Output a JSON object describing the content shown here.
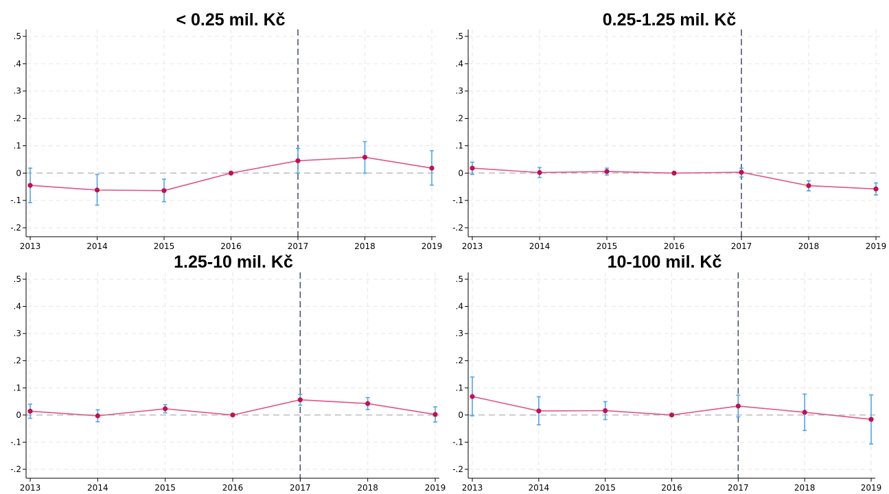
{
  "colors": {
    "series": "#e0557f",
    "point": "#c40f50",
    "ci": "#4ea5ef",
    "reference_line": "#4b5273",
    "zero_line": "#bdbdbd"
  },
  "chart_data": [
    {
      "type": "line",
      "title": "< 0.25 mil. Kč",
      "x": [
        2013,
        2014,
        2015,
        2016,
        2017,
        2018,
        2019
      ],
      "y": [
        -0.045,
        -0.062,
        -0.064,
        0.0,
        0.045,
        0.058,
        0.018
      ],
      "ci_low": [
        -0.108,
        -0.117,
        -0.105,
        0.0,
        0.0,
        0.0,
        -0.044
      ],
      "ci_high": [
        0.018,
        -0.005,
        -0.022,
        0.0,
        0.09,
        0.115,
        0.082
      ],
      "xlim": [
        2013,
        2019
      ],
      "ylim": [
        -0.2,
        0.5
      ],
      "yticks": [
        -0.2,
        -0.1,
        0,
        0.1,
        0.2,
        0.3,
        0.4,
        0.5
      ],
      "ytick_labels": [
        "-.2",
        "-.1",
        "0",
        ".1",
        ".2",
        ".3",
        ".4",
        ".5"
      ],
      "xtick_labels": [
        "2013",
        "2014",
        "2015",
        "2016",
        "2017",
        "2018",
        "2019"
      ],
      "reference_x": 2017,
      "grid": true
    },
    {
      "type": "line",
      "title": "0.25-1.25 mil. Kč",
      "x": [
        2013,
        2014,
        2015,
        2016,
        2017,
        2018,
        2019
      ],
      "y": [
        0.018,
        0.002,
        0.006,
        0.0,
        0.003,
        -0.046,
        -0.058
      ],
      "ci_low": [
        -0.005,
        -0.016,
        -0.007,
        0.0,
        -0.014,
        -0.065,
        -0.08
      ],
      "ci_high": [
        0.04,
        0.02,
        0.018,
        0.0,
        0.018,
        -0.028,
        -0.036
      ],
      "xlim": [
        2013,
        2019
      ],
      "ylim": [
        -0.2,
        0.5
      ],
      "yticks": [
        -0.2,
        -0.1,
        0,
        0.1,
        0.2,
        0.3,
        0.4,
        0.5
      ],
      "ytick_labels": [
        "-.2",
        "-.1",
        "0",
        ".1",
        ".2",
        ".3",
        ".4",
        ".5"
      ],
      "xtick_labels": [
        "2013",
        "2014",
        "2015",
        "2016",
        "2017",
        "2018",
        "2019"
      ],
      "reference_x": 2017,
      "grid": true
    },
    {
      "type": "line",
      "title": "1.25-10 mil. Kč",
      "x": [
        2013,
        2014,
        2015,
        2016,
        2017,
        2018,
        2019
      ],
      "y": [
        0.014,
        -0.003,
        0.023,
        0.0,
        0.056,
        0.042,
        0.002
      ],
      "ci_low": [
        -0.012,
        -0.025,
        0.008,
        0.0,
        0.036,
        0.02,
        -0.026
      ],
      "ci_high": [
        0.04,
        0.019,
        0.038,
        0.0,
        0.076,
        0.064,
        0.03
      ],
      "xlim": [
        2013,
        2019
      ],
      "ylim": [
        -0.2,
        0.5
      ],
      "yticks": [
        -0.2,
        -0.1,
        0,
        0.1,
        0.2,
        0.3,
        0.4,
        0.5
      ],
      "ytick_labels": [
        "-.2",
        "-.1",
        "0",
        ".1",
        ".2",
        ".3",
        ".4",
        ".5"
      ],
      "xtick_labels": [
        "2013",
        "2014",
        "2015",
        "2016",
        "2017",
        "2018",
        "2019"
      ],
      "reference_x": 2017,
      "grid": true
    },
    {
      "type": "line",
      "title": "10-100 mil. Kč",
      "x": [
        2013,
        2014,
        2015,
        2016,
        2017,
        2018,
        2019
      ],
      "y": [
        0.068,
        0.015,
        0.016,
        0.0,
        0.033,
        0.01,
        -0.016
      ],
      "ci_low": [
        -0.003,
        -0.036,
        -0.017,
        0.0,
        -0.007,
        -0.057,
        -0.107
      ],
      "ci_high": [
        0.14,
        0.067,
        0.049,
        0.0,
        0.073,
        0.077,
        0.074
      ],
      "xlim": [
        2013,
        2019
      ],
      "ylim": [
        -0.2,
        0.5
      ],
      "yticks": [
        -0.2,
        -0.1,
        0,
        0.1,
        0.2,
        0.3,
        0.4,
        0.5
      ],
      "ytick_labels": [
        "-.2",
        "-.1",
        "0",
        ".1",
        ".2",
        ".3",
        ".4",
        ".5"
      ],
      "xtick_labels": [
        "2013",
        "2014",
        "2015",
        "2016",
        "2017",
        "2018",
        "2019"
      ],
      "reference_x": 2017,
      "grid": true
    }
  ]
}
